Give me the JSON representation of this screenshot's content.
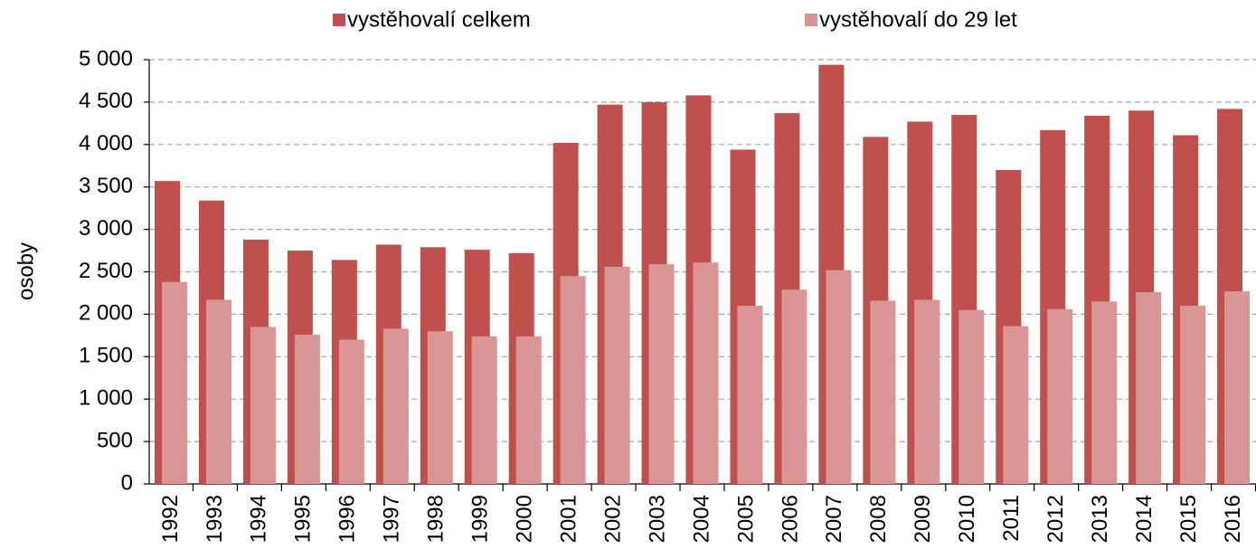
{
  "chart_data": {
    "type": "bar",
    "y_label": "osoby",
    "categories": [
      "1992",
      "1993",
      "1994",
      "1995",
      "1996",
      "1997",
      "1998",
      "1999",
      "2000",
      "2001",
      "2002",
      "2003",
      "2004",
      "2005",
      "2006",
      "2007",
      "2008",
      "2009",
      "2010",
      "2011",
      "2012",
      "2013",
      "2014",
      "2015",
      "2016"
    ],
    "series": [
      {
        "name": "vystěhovalí celkem",
        "color": "#c0504d",
        "values": [
          3570,
          3340,
          2880,
          2750,
          2640,
          2820,
          2790,
          2760,
          2720,
          4020,
          4470,
          4500,
          4580,
          3940,
          4370,
          4940,
          4090,
          4270,
          4350,
          3700,
          4170,
          4340,
          4400,
          4110,
          4420
        ]
      },
      {
        "name": "vystěhovalí do 29 let",
        "color": "#d99694",
        "values": [
          2380,
          2170,
          1850,
          1760,
          1700,
          1830,
          1800,
          1740,
          1740,
          2450,
          2560,
          2590,
          2610,
          2100,
          2290,
          2520,
          2160,
          2170,
          2050,
          1860,
          2060,
          2150,
          2260,
          2100,
          2270
        ]
      }
    ],
    "ylim": [
      0,
      5000
    ],
    "yticks": [
      0,
      500,
      {
        "value": 1000,
        "label": "1 000"
      },
      {
        "value": 1500,
        "label": "1 500"
      },
      {
        "value": 2000,
        "label": "2 000"
      },
      {
        "value": 2500,
        "label": "2 500"
      },
      {
        "value": 3000,
        "label": "3 000"
      },
      {
        "value": 3500,
        "label": "3 500"
      },
      {
        "value": 4000,
        "label": "4 000"
      },
      {
        "value": 4500,
        "label": "4 500"
      },
      {
        "value": 5000,
        "label": "5 000"
      }
    ],
    "grid": true,
    "legend": "top"
  }
}
